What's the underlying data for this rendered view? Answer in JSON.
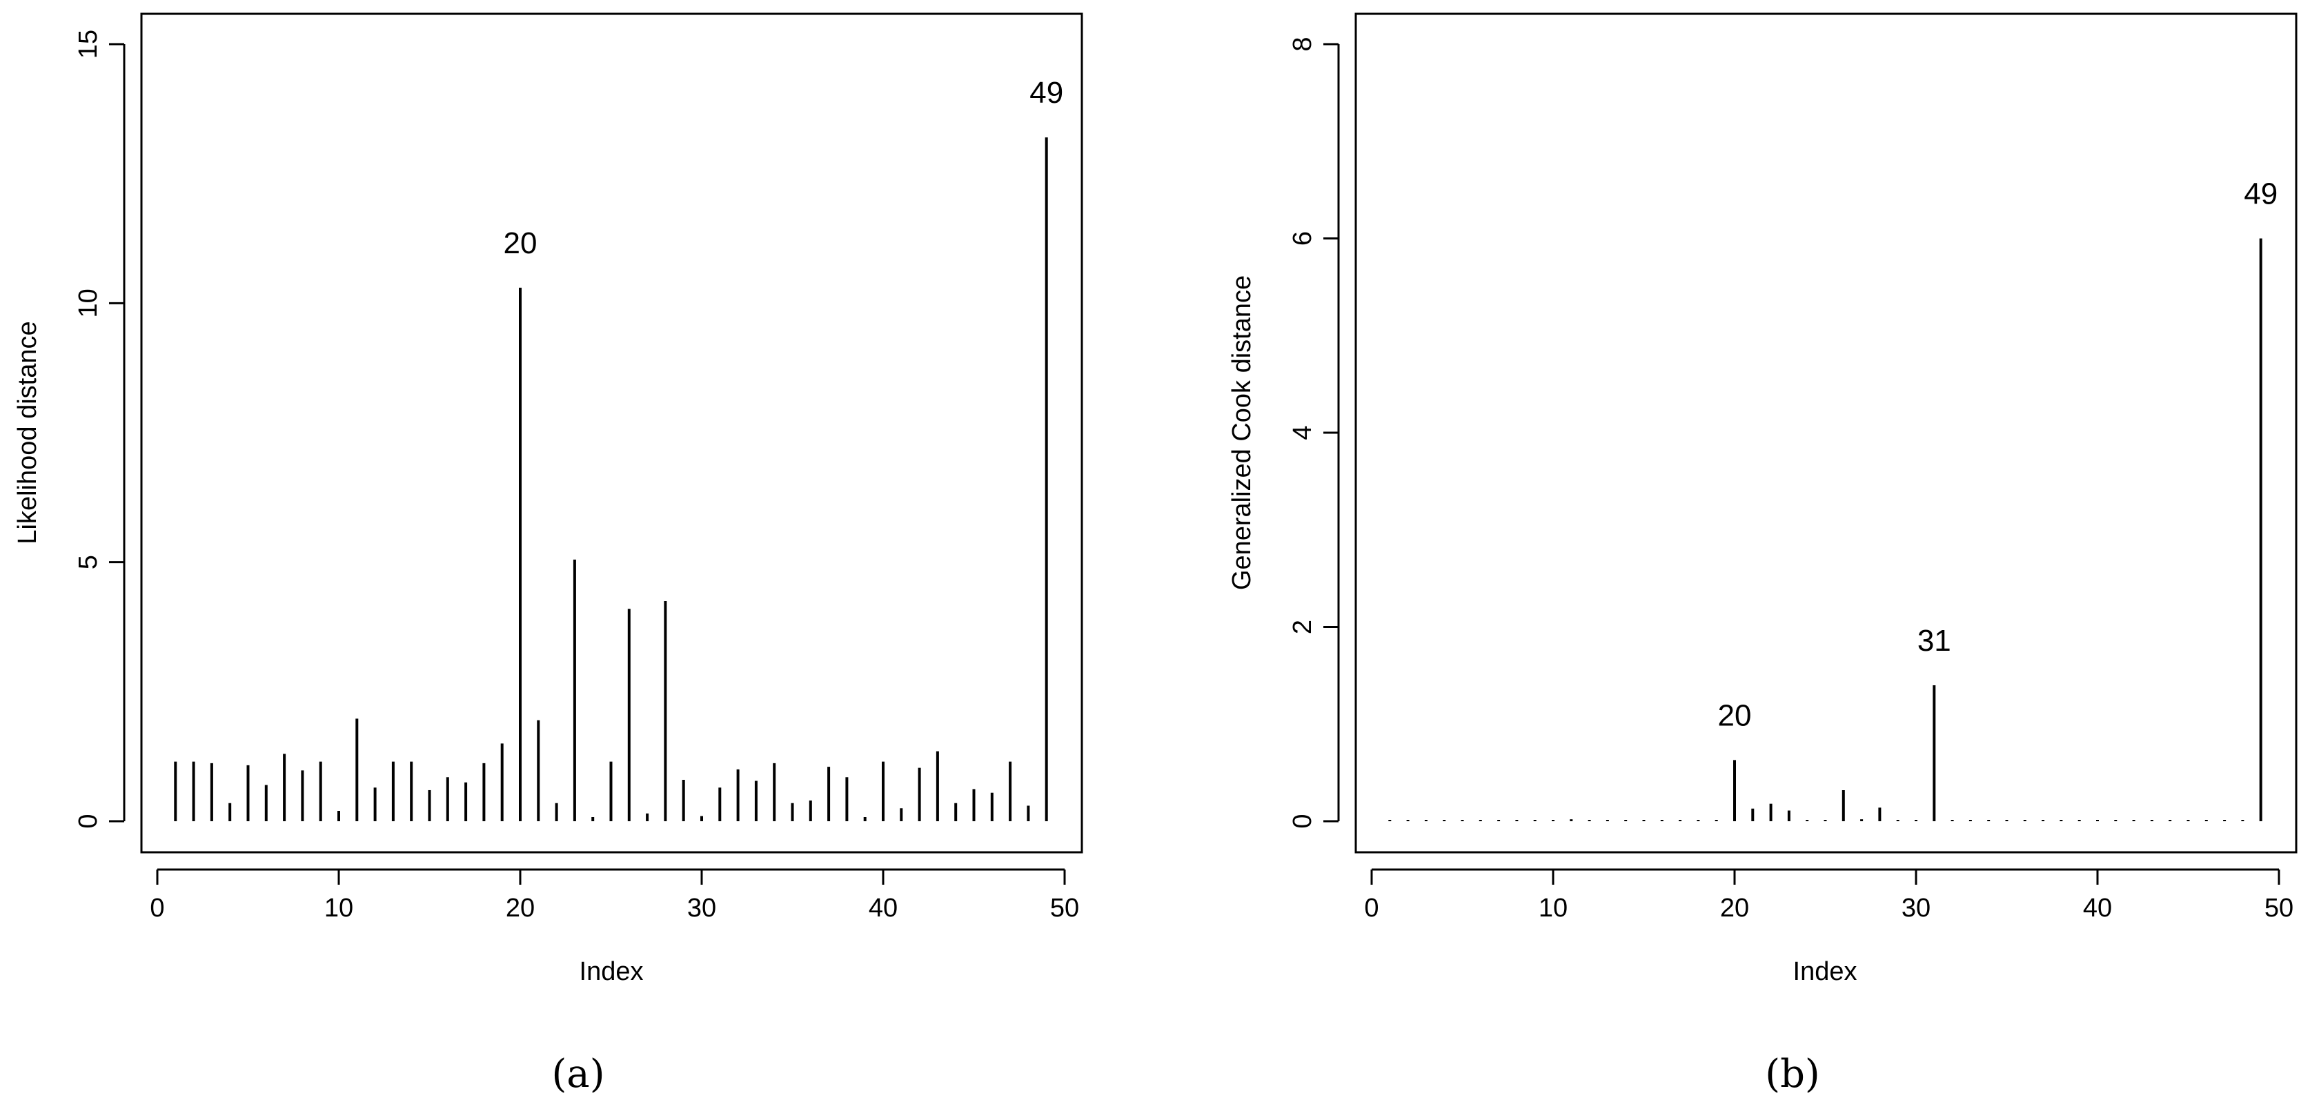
{
  "chart_data": [
    {
      "type": "bar",
      "panel": "(a)",
      "xlabel": "Index",
      "ylabel": "Likelihood distance",
      "xlim": [
        0,
        50
      ],
      "ylim": [
        0,
        15
      ],
      "xticks": [
        0,
        10,
        20,
        30,
        40,
        50
      ],
      "yticks": [
        0,
        5,
        10,
        15
      ],
      "grid": false,
      "x": [
        1,
        2,
        3,
        4,
        5,
        6,
        7,
        8,
        9,
        10,
        11,
        12,
        13,
        14,
        15,
        16,
        17,
        18,
        19,
        20,
        21,
        22,
        23,
        24,
        25,
        26,
        27,
        28,
        29,
        30,
        31,
        32,
        33,
        34,
        35,
        36,
        37,
        38,
        39,
        40,
        41,
        42,
        43,
        44,
        45,
        46,
        47,
        48,
        49
      ],
      "values": [
        1.15,
        1.15,
        1.12,
        0.35,
        1.08,
        0.7,
        1.3,
        0.98,
        1.15,
        0.2,
        1.98,
        0.65,
        1.15,
        1.15,
        0.6,
        0.85,
        0.75,
        1.12,
        1.5,
        10.3,
        1.95,
        0.35,
        5.05,
        0.08,
        1.15,
        4.1,
        0.15,
        4.25,
        0.8,
        0.1,
        0.65,
        1.0,
        0.78,
        1.12,
        0.35,
        0.4,
        1.05,
        0.85,
        0.08,
        1.15,
        0.25,
        1.03,
        1.35,
        0.35,
        0.62,
        0.55,
        1.15,
        0.3,
        13.2
      ],
      "annotations": [
        {
          "x": 20,
          "y": 10.3,
          "label": "20"
        },
        {
          "x": 49,
          "y": 13.2,
          "label": "49"
        }
      ]
    },
    {
      "type": "bar",
      "panel": "(b)",
      "xlabel": "Index",
      "ylabel": "Generalized Cook distance",
      "xlim": [
        0,
        50
      ],
      "ylim": [
        0,
        8
      ],
      "xticks": [
        0,
        10,
        20,
        30,
        40,
        50
      ],
      "yticks": [
        0,
        2,
        4,
        6,
        8
      ],
      "grid": false,
      "x": [
        1,
        2,
        3,
        4,
        5,
        6,
        7,
        8,
        9,
        10,
        11,
        12,
        13,
        14,
        15,
        16,
        17,
        18,
        19,
        20,
        21,
        22,
        23,
        24,
        25,
        26,
        27,
        28,
        29,
        30,
        31,
        32,
        33,
        34,
        35,
        36,
        37,
        38,
        39,
        40,
        41,
        42,
        43,
        44,
        45,
        46,
        47,
        48,
        49
      ],
      "values": [
        0.01,
        0.01,
        0.01,
        0.01,
        0.01,
        0.01,
        0.01,
        0.01,
        0.01,
        0.01,
        0.02,
        0.01,
        0.01,
        0.01,
        0.01,
        0.01,
        0.01,
        0.01,
        0.01,
        0.63,
        0.13,
        0.18,
        0.11,
        0.01,
        0.01,
        0.32,
        0.02,
        0.14,
        0.01,
        0.01,
        1.4,
        0.01,
        0.01,
        0.01,
        0.01,
        0.01,
        0.01,
        0.01,
        0.01,
        0.01,
        0.01,
        0.01,
        0.01,
        0.01,
        0.01,
        0.01,
        0.01,
        0.01,
        6.0
      ],
      "annotations": [
        {
          "x": 20,
          "y": 0.63,
          "label": "20"
        },
        {
          "x": 31,
          "y": 1.4,
          "label": "31"
        },
        {
          "x": 49,
          "y": 6.0,
          "label": "49"
        }
      ]
    }
  ]
}
